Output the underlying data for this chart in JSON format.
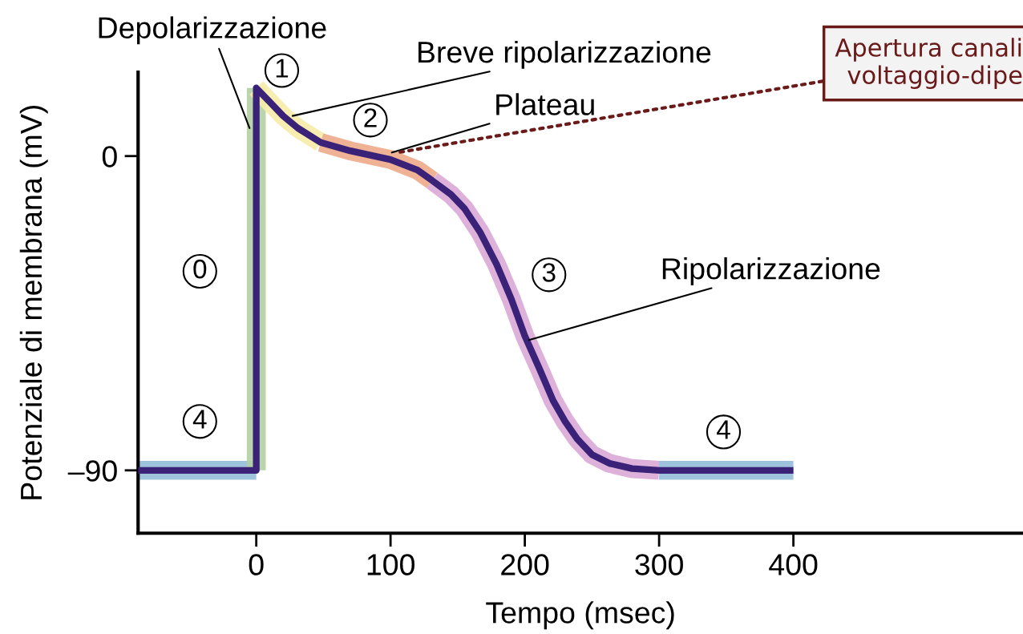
{
  "chart_data": {
    "type": "line",
    "xlabel": "Tempo (msec)",
    "ylabel": "Potenziale di membrana (mV)",
    "xlim": [
      -88,
      571
    ],
    "ylim": [
      -108,
      24
    ],
    "xticks": [
      0,
      100,
      200,
      300,
      400
    ],
    "yticks": [
      {
        "value": -90,
        "label": "–90"
      },
      0
    ],
    "grid": false,
    "legend": false,
    "marker": "none",
    "line_style": "solid",
    "series": [
      {
        "color": "#92bcd9",
        "x": [
          -88,
          0
        ],
        "values": [
          -90,
          -90
        ]
      },
      {
        "color": "#b2cfa4",
        "x": [
          0,
          0
        ],
        "values": [
          -90,
          19.5
        ]
      },
      {
        "color": "#f6eba8",
        "x": [
          0,
          10,
          20,
          31,
          48
        ],
        "values": [
          19.5,
          15.5,
          11.5,
          8,
          3.9
        ]
      },
      {
        "color": "#eeaa88",
        "x": [
          48,
          70,
          100,
          120,
          131
        ],
        "values": [
          3.9,
          1.5,
          -1,
          -4,
          -7
        ]
      },
      {
        "color": "#d9a8d6",
        "x": [
          131,
          145,
          155,
          167,
          179,
          190,
          200,
          211,
          221,
          230,
          239,
          250,
          263,
          280,
          300
        ],
        "values": [
          -7,
          -11,
          -15,
          -22,
          -31,
          -41,
          -51.5,
          -61,
          -70,
          -76,
          -81,
          -85.5,
          -88,
          -89.5,
          -90
        ]
      },
      {
        "color": "#92bcd9",
        "x": [
          300,
          400
        ],
        "values": [
          -90,
          -90
        ]
      },
      {
        "color": "#3a2279",
        "x": [
          -88,
          0,
          0,
          10,
          20,
          31,
          48,
          70,
          100,
          120,
          131,
          145,
          155,
          167,
          179,
          190,
          200,
          211,
          221,
          230,
          239,
          250,
          263,
          280,
          300,
          400
        ],
        "values": [
          -90,
          -90,
          19.5,
          15.5,
          11.5,
          8,
          3.9,
          1.5,
          -1,
          -4,
          -7,
          -11,
          -15,
          -22,
          -31,
          -41,
          -51.5,
          -61,
          -70,
          -76,
          -81,
          -85.5,
          -88,
          -89.5,
          -90,
          -90
        ]
      }
    ],
    "annotations": [
      {
        "text": "Depolarizzazione",
        "x": -5,
        "y": 8
      },
      {
        "text": "Breve ripolarizzazione",
        "x": 27,
        "y": 11.5
      },
      {
        "text": "Plateau",
        "x": 101,
        "y": 1
      },
      {
        "text": "Ripolarizzazione",
        "x": 203,
        "y": -52.7
      },
      "1",
      "2",
      "3",
      "0",
      "4",
      "4",
      {
        "text": "Apertura canali\nvoltaggio-dipe",
        "x": 105,
        "y": 1
      }
    ]
  }
}
